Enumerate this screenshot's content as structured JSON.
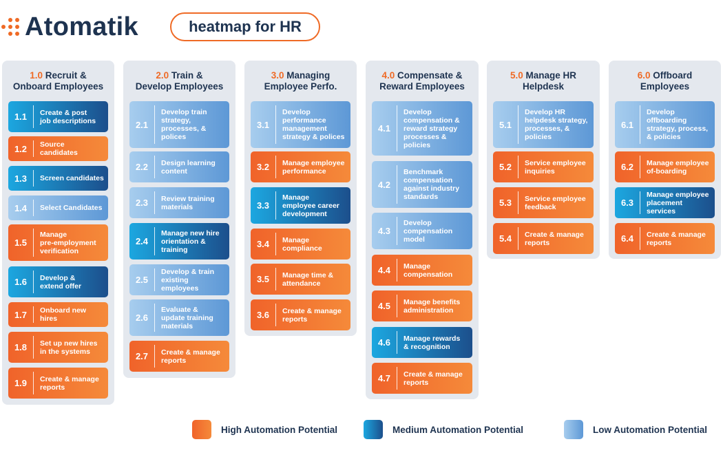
{
  "header": {
    "logo_text": "Atomatik",
    "title": "heatmap for HR"
  },
  "colors": {
    "accent": "#ef6a25",
    "high": "#f0632a",
    "medium": "#1c7fc0",
    "low": "#7fb0e0",
    "text_dark": "#1e3350",
    "column_bg": "#e4e8ee"
  },
  "columns": [
    {
      "number": "1.0",
      "name": "Recruit &\nOnboard Employees",
      "items": [
        {
          "num": "1.1",
          "text": "Create & post\njob descriptions",
          "level": "medium"
        },
        {
          "num": "1.2",
          "text": "Source candidates",
          "level": "high"
        },
        {
          "num": "1.3",
          "text": "Screen candidates",
          "level": "medium"
        },
        {
          "num": "1.4",
          "text": "Select Candidates",
          "level": "low"
        },
        {
          "num": "1.5",
          "text": "Manage\npre-employment\nverification",
          "level": "high"
        },
        {
          "num": "1.6",
          "text": "Develop &\nextend offer",
          "level": "medium"
        },
        {
          "num": "1.7",
          "text": "Onboard new hires",
          "level": "high"
        },
        {
          "num": "1.8",
          "text": "Set up new hires\nin the systems",
          "level": "high"
        },
        {
          "num": "1.9",
          "text": "Create & manage\nreports",
          "level": "high"
        }
      ]
    },
    {
      "number": "2.0",
      "name": "Train &\nDevelop Employees",
      "items": [
        {
          "num": "2.1",
          "text": "Develop train\nstrategy,\nprocesses, &\npolices",
          "level": "low"
        },
        {
          "num": "2.2",
          "text": "Design learning\ncontent",
          "level": "low"
        },
        {
          "num": "2.3",
          "text": "Review training\nmaterials",
          "level": "low"
        },
        {
          "num": "2.4",
          "text": "Manage new hire\norientation &\ntraining",
          "level": "medium"
        },
        {
          "num": "2.5",
          "text": "Develop & train\nexisting employees",
          "level": "low"
        },
        {
          "num": "2.6",
          "text": "Evaluate &\nupdate training\nmaterials",
          "level": "low"
        },
        {
          "num": "2.7",
          "text": "Create & manage\nreports",
          "level": "high"
        }
      ]
    },
    {
      "number": "3.0",
      "name": "Managing\nEmployee Perfo.",
      "items": [
        {
          "num": "3.1",
          "text": "Develop\nperformance\nmanagement\nstrategy & polices",
          "level": "low"
        },
        {
          "num": "3.2",
          "text": "Manage employee\nperformance",
          "level": "high"
        },
        {
          "num": "3.3",
          "text": "Manage\nemployee career\ndevelopment",
          "level": "medium"
        },
        {
          "num": "3.4",
          "text": "Manage\ncompliance",
          "level": "high"
        },
        {
          "num": "3.5",
          "text": "Manage time &\nattendance",
          "level": "high"
        },
        {
          "num": "3.6",
          "text": "Create & manage\nreports",
          "level": "high"
        }
      ]
    },
    {
      "number": "4.0",
      "name": "Compensate &\nReward Employees",
      "items": [
        {
          "num": "4.1",
          "text": "Develop\ncompensation &\nreward strategy\nprocesses &\npolicies",
          "level": "low"
        },
        {
          "num": "4.2",
          "text": "Benchmark\ncompensation\nagainst industry\nstandards",
          "level": "low"
        },
        {
          "num": "4.3",
          "text": "Develop\ncompensation\nmodel",
          "level": "low"
        },
        {
          "num": "4.4",
          "text": "Manage\ncompensation",
          "level": "high"
        },
        {
          "num": "4.5",
          "text": "Manage benefits\nadministration",
          "level": "high"
        },
        {
          "num": "4.6",
          "text": "Manage rewards\n& recognition",
          "level": "medium"
        },
        {
          "num": "4.7",
          "text": "Create & manage\nreports",
          "level": "high"
        }
      ]
    },
    {
      "number": "5.0",
      "name": "Manage HR\nHelpdesk",
      "items": [
        {
          "num": "5.1",
          "text": "Develop HR\nhelpdesk strategy,\nprocesses, &\npolicies",
          "level": "low"
        },
        {
          "num": "5.2",
          "text": "Service employee\ninquiries",
          "level": "high"
        },
        {
          "num": "5.3",
          "text": "Service employee\nfeedback",
          "level": "high"
        },
        {
          "num": "5.4",
          "text": "Create & manage\nreports",
          "level": "high"
        }
      ]
    },
    {
      "number": "6.0",
      "name": "Offboard\nEmployees",
      "items": [
        {
          "num": "6.1",
          "text": "Develop\noffboarding\nstrategy, process,\n& policies",
          "level": "low"
        },
        {
          "num": "6.2",
          "text": "Manage employee\nof-boarding",
          "level": "high"
        },
        {
          "num": "6.3",
          "text": "Manage employee\nplacement services",
          "level": "medium"
        },
        {
          "num": "6.4",
          "text": "Create & manage\nreports",
          "level": "high"
        }
      ]
    }
  ],
  "legend": [
    {
      "level": "high",
      "label": "High Automation Potential"
    },
    {
      "level": "medium",
      "label": "Medium Automation Potential"
    },
    {
      "level": "low",
      "label": "Low Automation Potential"
    }
  ]
}
